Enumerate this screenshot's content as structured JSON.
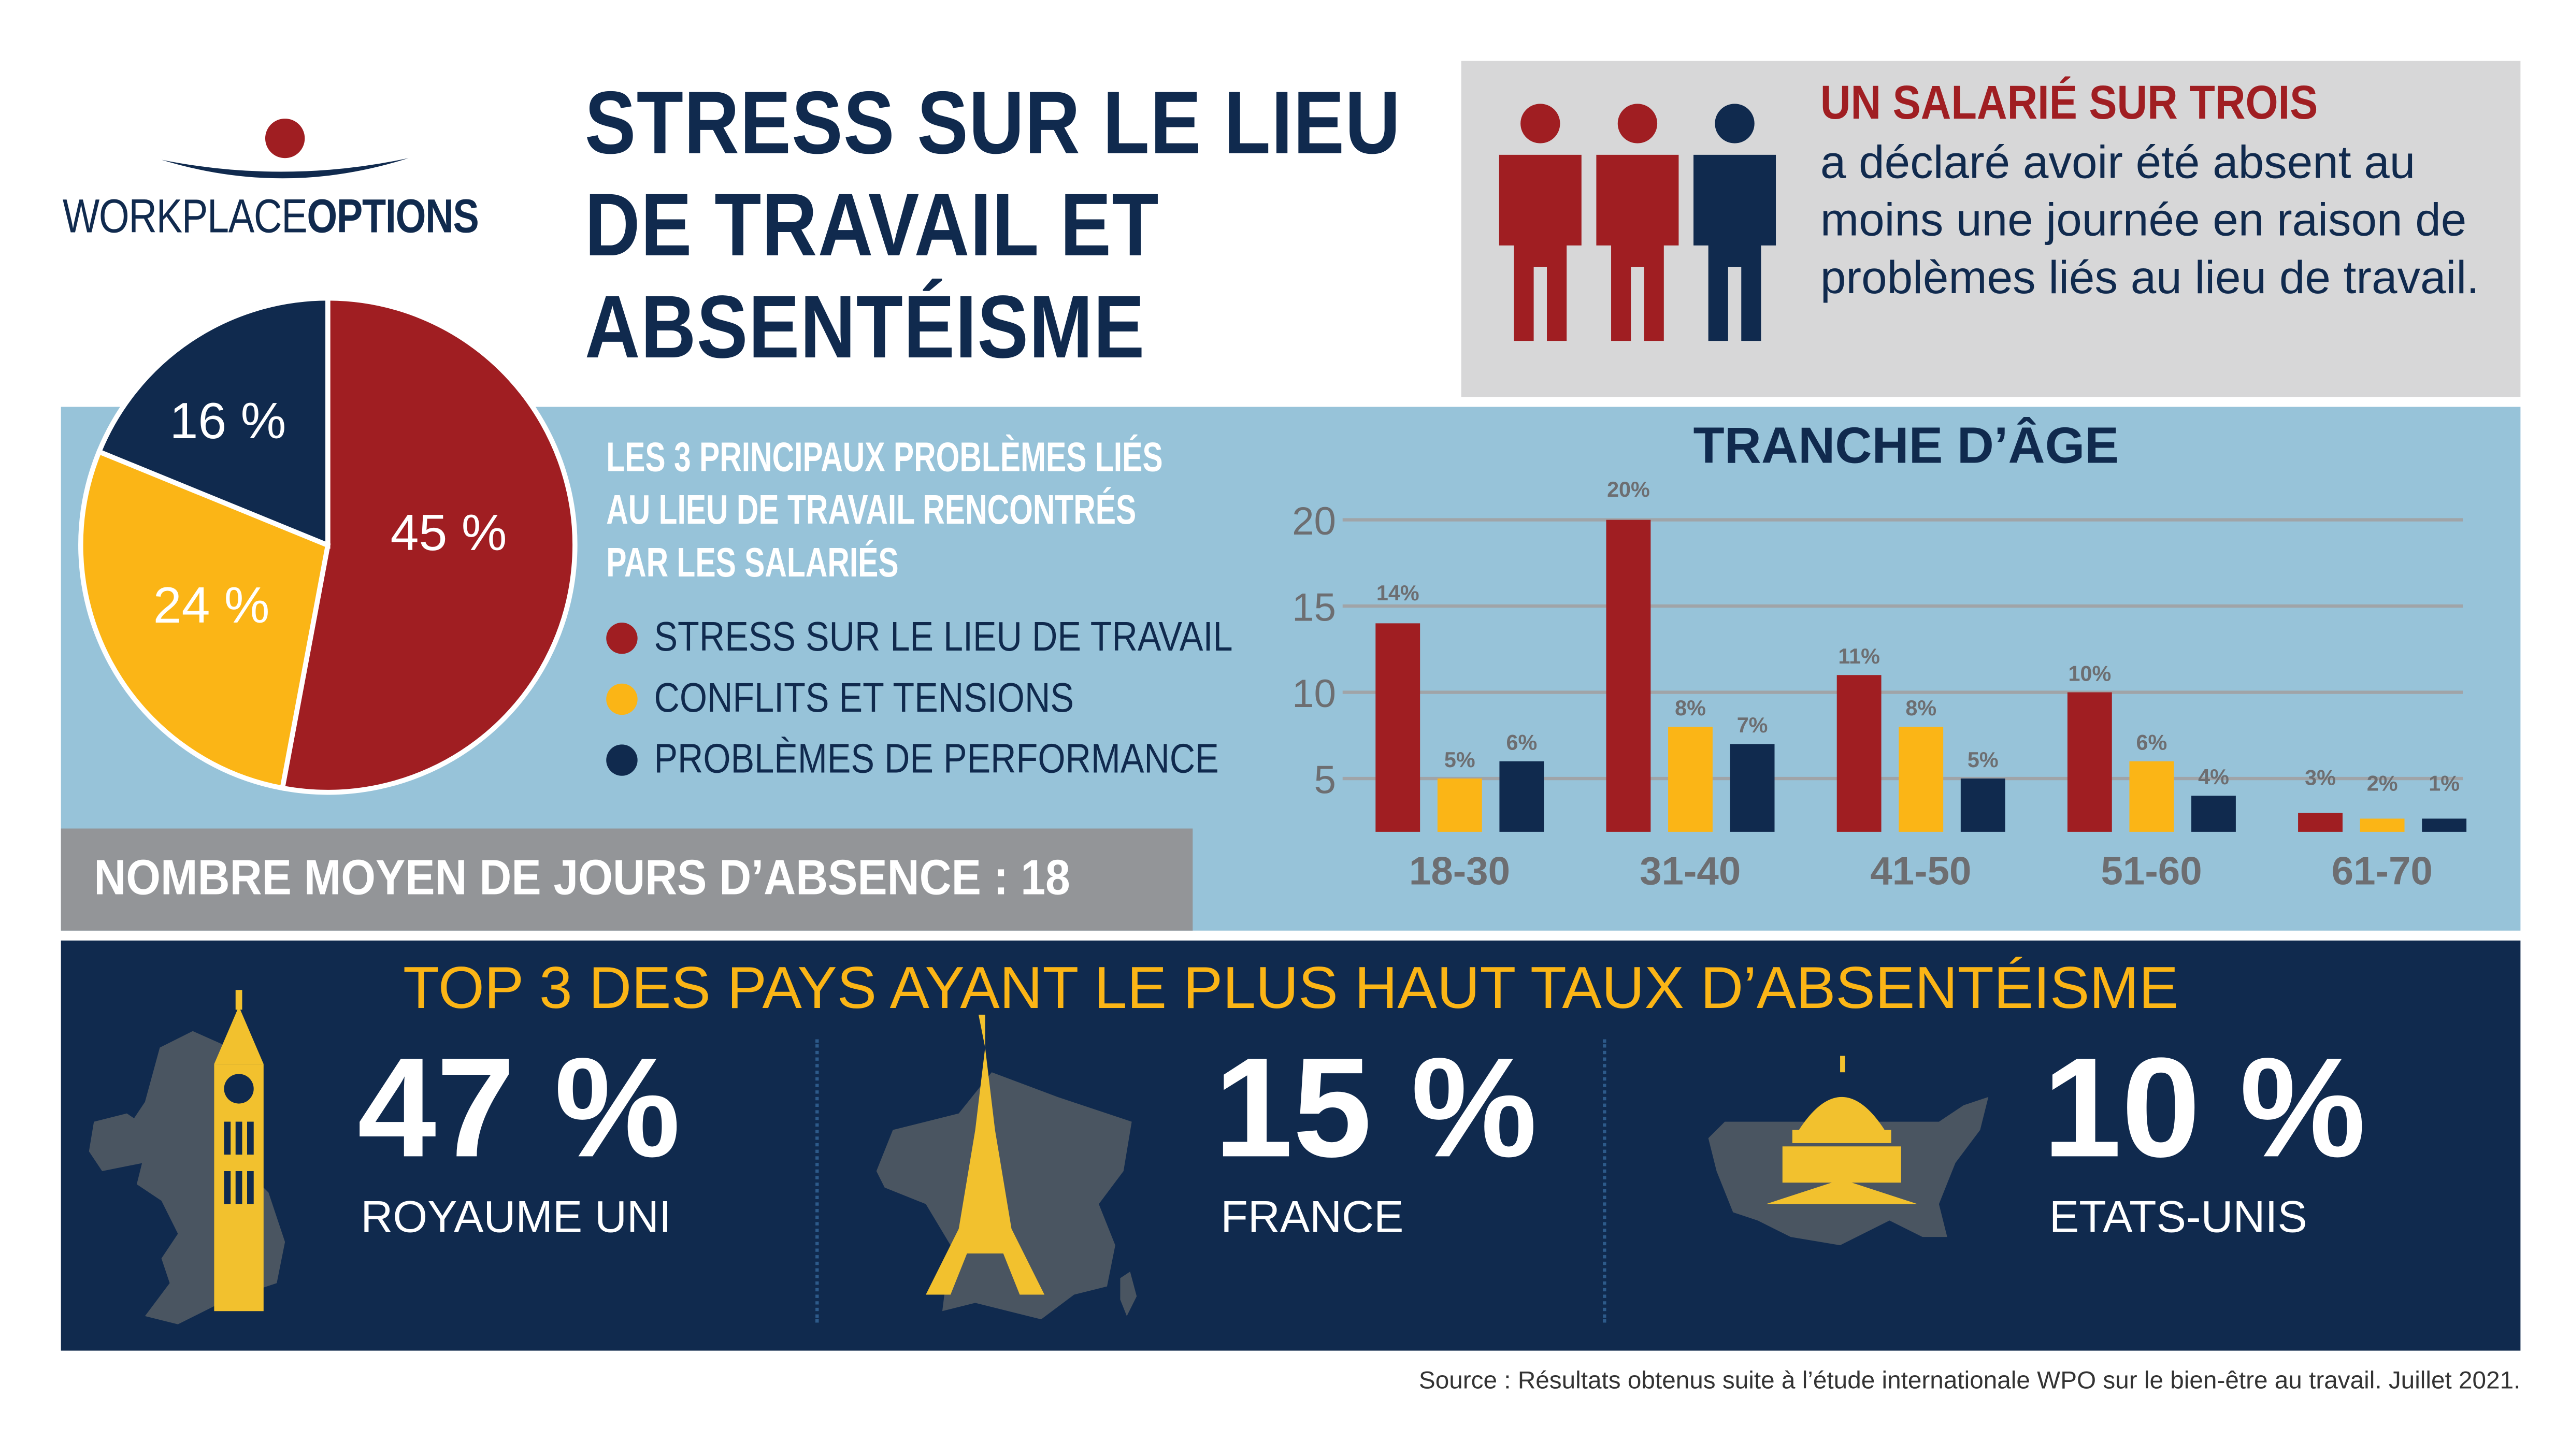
{
  "logo": {
    "text_light": "WORKPLACE",
    "text_bold": "OPTIONS"
  },
  "title": {
    "line1": "STRESS SUR LE LIEU",
    "line2": "DE TRAVAIL ET",
    "line3": "ABSENTÉISME"
  },
  "highlight": {
    "heading": "UN SALARIÉ SUR TROIS",
    "text": "a déclaré avoir été absent au moins une journée en raison de problèmes liés au lieu de travail."
  },
  "problems": {
    "heading_lines": [
      "LES 3 PRINCIPAUX PROBLÈMES LIÉS",
      "AU LIEU DE TRAVAIL RENCONTRÉS",
      "PAR LES SALARIÉS"
    ],
    "legend": [
      {
        "label": "STRESS SUR LE LIEU DE TRAVAIL",
        "color": "#a01e22"
      },
      {
        "label": "CONFLITS ET TENSIONS",
        "color": "#fbb516"
      },
      {
        "label": "PROBLÈMES DE PERFORMANCE",
        "color": "#102a4e"
      }
    ]
  },
  "absence": {
    "label": "NOMBRE MOYEN DE JOURS D’ABSENCE : 18"
  },
  "chart_data": [
    {
      "type": "pie",
      "slices": [
        {
          "name": "STRESS SUR LE LIEU DE TRAVAIL",
          "value": 45,
          "label": "45 %",
          "color": "#a01e22"
        },
        {
          "name": "CONFLITS ET TENSIONS",
          "value": 24,
          "label": "24 %",
          "color": "#fbb516"
        },
        {
          "name": "PROBLÈMES DE PERFORMANCE",
          "value": 16,
          "label": "16 %",
          "color": "#102a4e"
        }
      ]
    },
    {
      "type": "bar",
      "title": "TRANCHE D’ÂGE",
      "categories": [
        "18-30",
        "31-40",
        "41-50",
        "51-60",
        "61-70"
      ],
      "yticks": [
        5,
        10,
        15,
        20
      ],
      "ylim": [
        0,
        20
      ],
      "grid": true,
      "series": [
        {
          "name": "STRESS SUR LE LIEU DE TRAVAIL",
          "color": "#a01e22",
          "values": [
            14,
            20,
            11,
            10,
            3
          ],
          "labels": [
            "14%",
            "20%",
            "11%",
            "10%",
            "3%"
          ]
        },
        {
          "name": "CONFLITS ET TENSIONS",
          "color": "#fbb516",
          "values": [
            5,
            8,
            8,
            6,
            2
          ],
          "labels": [
            "5%",
            "8%",
            "8%",
            "6%",
            "2%"
          ]
        },
        {
          "name": "PROBLÈMES DE PERFORMANCE",
          "color": "#102a4e",
          "values": [
            6,
            7,
            5,
            4,
            1
          ],
          "labels": [
            "6%",
            "7%",
            "5%",
            "4%",
            "1%"
          ]
        }
      ]
    }
  ],
  "countries": {
    "heading": "TOP 3 DES PAYS AYANT LE PLUS HAUT TAUX D’ABSENTÉISME",
    "items": [
      {
        "value": "47 %",
        "name": "ROYAUME UNI"
      },
      {
        "value": "15 %",
        "name": "FRANCE"
      },
      {
        "value": "10 %",
        "name": "ETATS-UNIS"
      }
    ]
  },
  "source": "Source : Résultats obtenus suite à l’étude internationale WPO sur le bien-être au travail. Juillet 2021."
}
